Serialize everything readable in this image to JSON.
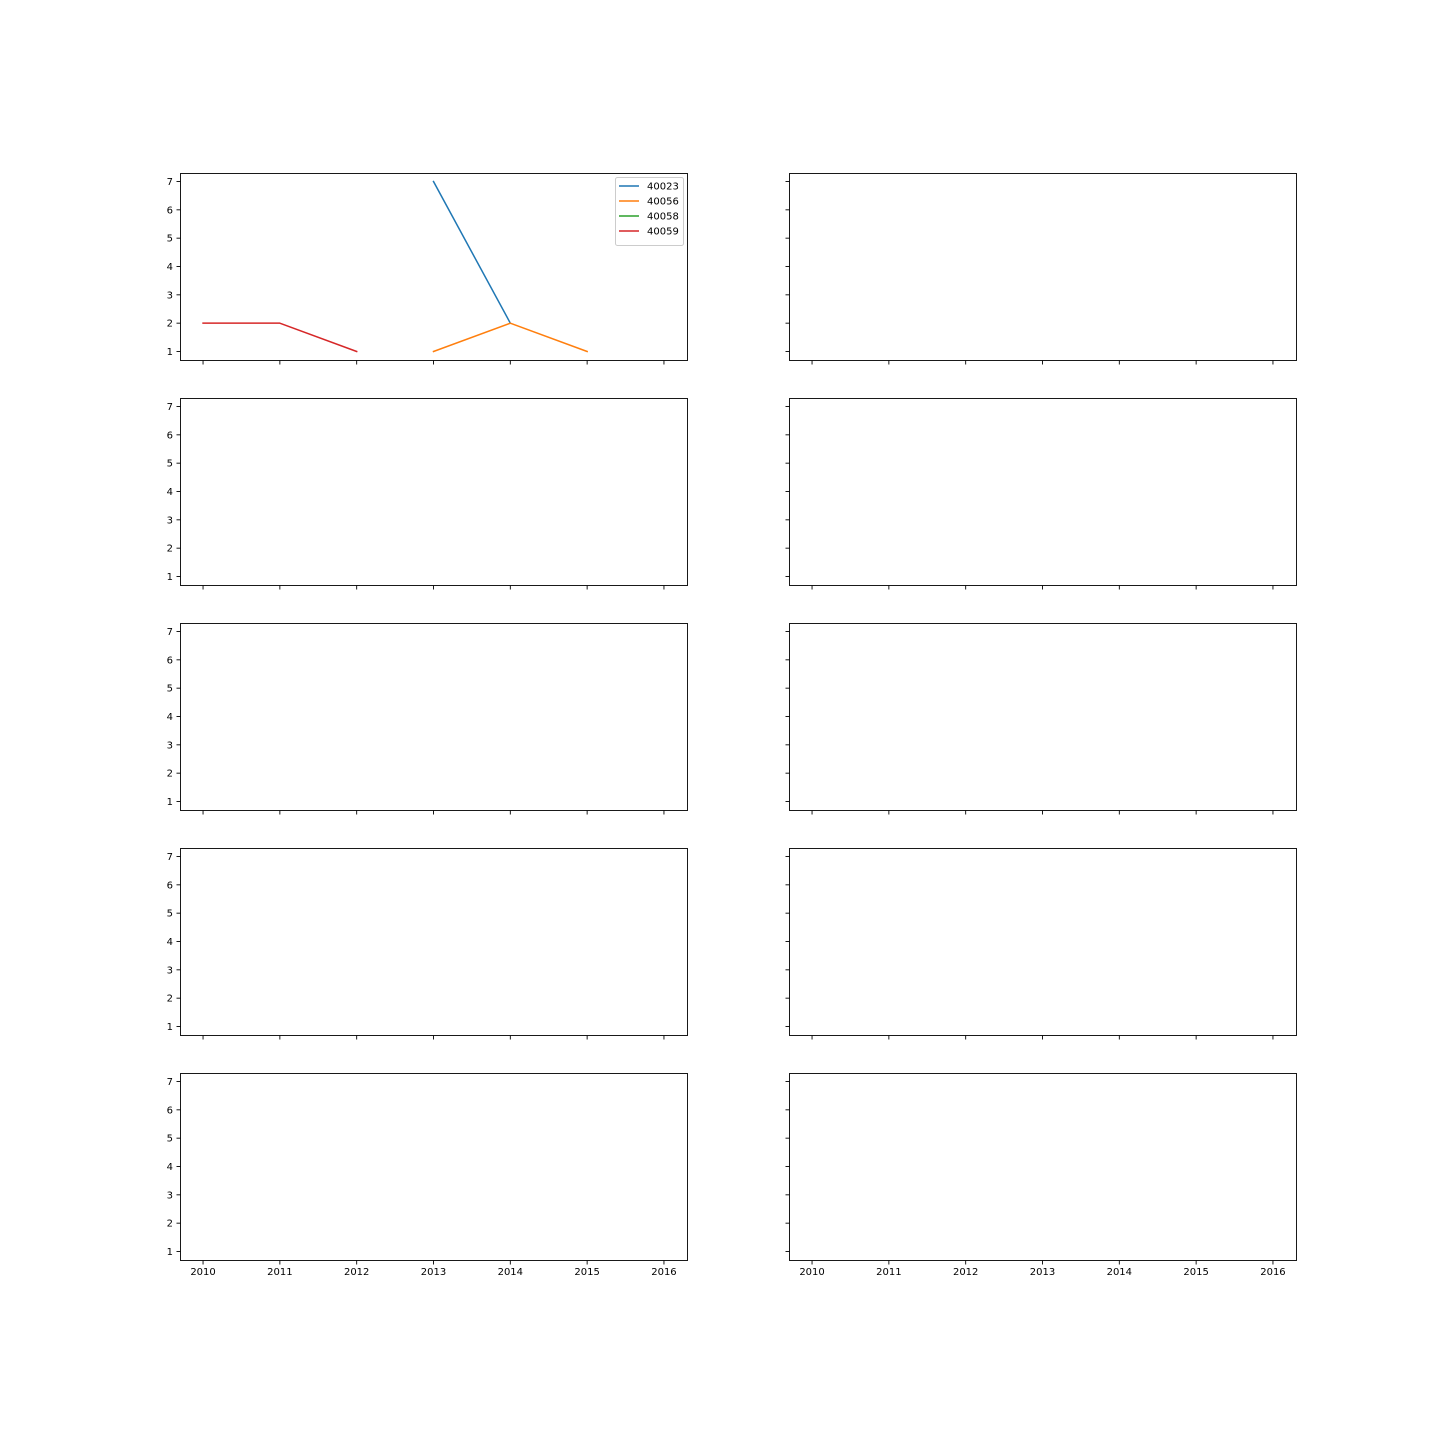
{
  "chart_data": {
    "type": "line",
    "layout": {
      "rows": 5,
      "cols": 2,
      "sharex": true,
      "sharey": true
    },
    "xlim": [
      2009.7,
      2016.3
    ],
    "ylim": [
      0.7,
      7.3
    ],
    "x_ticks": [
      2010,
      2011,
      2012,
      2013,
      2014,
      2015,
      2016
    ],
    "y_ticks": [
      1,
      2,
      3,
      4,
      5,
      6,
      7
    ],
    "title": "",
    "xlabel": "",
    "ylabel": "",
    "legend_placement": "upper-right",
    "subplots": [
      {
        "series": [
          {
            "name": "40023",
            "color": "#1f77b4",
            "x": [
              2013,
              2014
            ],
            "y": [
              7,
              2
            ]
          },
          {
            "name": "40056",
            "color": "#ff7f0e",
            "x": [
              2013,
              2014,
              2015
            ],
            "y": [
              1,
              2,
              1
            ]
          },
          {
            "name": "40058",
            "color": "#2ca02c",
            "x": [],
            "y": []
          },
          {
            "name": "40059",
            "color": "#d62728",
            "x": [
              2010,
              2011,
              2012
            ],
            "y": [
              2,
              2,
              1
            ]
          }
        ]
      },
      {
        "series": []
      },
      {
        "series": []
      },
      {
        "series": []
      },
      {
        "series": []
      },
      {
        "series": []
      },
      {
        "series": []
      },
      {
        "series": []
      },
      {
        "series": []
      },
      {
        "series": []
      }
    ]
  }
}
